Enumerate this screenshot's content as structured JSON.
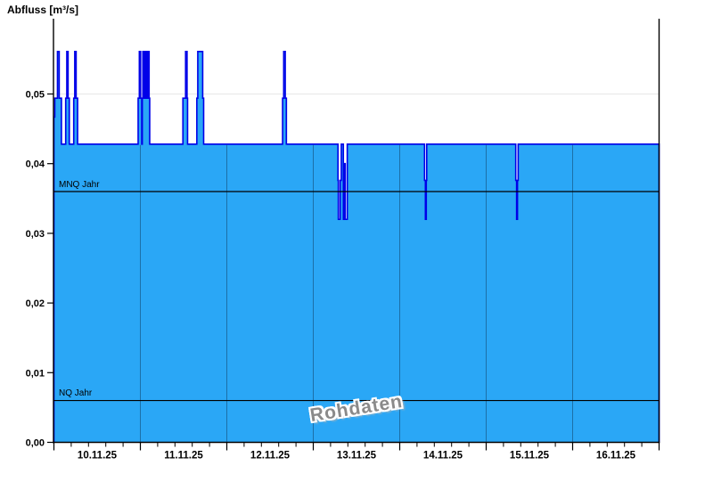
{
  "header": {
    "title": "Abfluss [m³/s]"
  },
  "watermark": "Rohdaten",
  "chart_data": {
    "type": "area",
    "title": "Abfluss [m³/s]",
    "ylabel": "Abfluss [m³/s]",
    "unit": "m³/s",
    "x_tick_labels": [
      "10.11.25",
      "11.11.25",
      "12.11.25",
      "13.11.25",
      "14.11.25",
      "15.11.25",
      "16.11.25"
    ],
    "x_range_days": 7,
    "x_minor_divisions_per_day": 5,
    "y_ticks": [
      {
        "v": 0.0,
        "label": "0,00"
      },
      {
        "v": 0.01,
        "label": "0,01"
      },
      {
        "v": 0.02,
        "label": "0,02"
      },
      {
        "v": 0.03,
        "label": "0,03"
      },
      {
        "v": 0.04,
        "label": "0,04"
      },
      {
        "v": 0.05,
        "label": "0,05"
      }
    ],
    "ylim": [
      0,
      0.0609
    ],
    "grid_values": [
      0.05
    ],
    "base_value": 0.0428,
    "segments": [
      [
        0.0,
        0.01,
        0.0467
      ],
      [
        0.01,
        0.041,
        0.0494
      ],
      [
        0.041,
        0.061,
        0.0561
      ],
      [
        0.061,
        0.087,
        0.0494
      ],
      [
        0.136,
        0.149,
        0.0494
      ],
      [
        0.149,
        0.164,
        0.0561
      ],
      [
        0.164,
        0.178,
        0.0494
      ],
      [
        0.229,
        0.241,
        0.0494
      ],
      [
        0.241,
        0.257,
        0.0561
      ],
      [
        0.257,
        0.274,
        0.0494
      ],
      [
        0.974,
        0.988,
        0.0494
      ],
      [
        0.988,
        1.003,
        0.0561
      ],
      [
        1.003,
        1.016,
        0.0494
      ],
      [
        1.022,
        1.029,
        0.0494
      ],
      [
        1.029,
        1.044,
        0.0561
      ],
      [
        1.044,
        1.06,
        0.0494
      ],
      [
        1.06,
        1.075,
        0.0561
      ],
      [
        1.075,
        1.088,
        0.0494
      ],
      [
        1.088,
        1.101,
        0.0561
      ],
      [
        1.101,
        1.108,
        0.0494
      ],
      [
        1.492,
        1.523,
        0.0494
      ],
      [
        1.523,
        1.54,
        0.0561
      ],
      [
        1.54,
        1.546,
        0.0494
      ],
      [
        1.653,
        1.664,
        0.0494
      ],
      [
        1.664,
        1.721,
        0.0561
      ],
      [
        1.721,
        1.732,
        0.0494
      ],
      [
        2.645,
        2.658,
        0.0494
      ],
      [
        2.658,
        2.676,
        0.0561
      ],
      [
        2.676,
        2.689,
        0.0494
      ],
      [
        3.286,
        3.29,
        0.0376
      ],
      [
        3.29,
        3.311,
        0.032
      ],
      [
        3.311,
        3.324,
        0.0376
      ],
      [
        3.348,
        3.362,
        0.032
      ],
      [
        3.362,
        3.369,
        0.04
      ],
      [
        3.369,
        3.393,
        0.032
      ],
      [
        4.287,
        4.297,
        0.0376
      ],
      [
        4.297,
        4.307,
        0.032
      ],
      [
        4.307,
        4.312,
        0.0376
      ],
      [
        5.342,
        5.352,
        0.0376
      ],
      [
        5.352,
        5.362,
        0.032
      ],
      [
        5.362,
        5.37,
        0.0376
      ]
    ],
    "reference_lines": [
      {
        "name": "MNQ Jahr",
        "value": 0.036
      },
      {
        "name": "NQ Jahr",
        "value": 0.006
      }
    ],
    "colors": {
      "fill": "#2AA7F6",
      "stroke": "#0000E8",
      "day_line": "#1C70A8",
      "grid": "#EBEBEB",
      "axis": "#000000",
      "ref_line": "#000000",
      "watermark": "#8A8A8A"
    }
  }
}
